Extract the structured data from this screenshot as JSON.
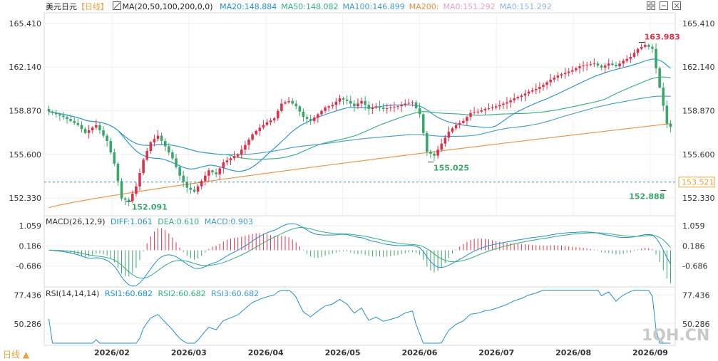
{
  "header": {
    "symbol": "美元日元",
    "period_tag": "【日线】",
    "ma_label": "MA(20,50,100,200,0,0)",
    "ma_values": [
      {
        "label": "MA20:148.884",
        "color": "#1e8fd6"
      },
      {
        "label": "MA50:148.082",
        "color": "#2fae7a"
      },
      {
        "label": "MA100:146.899",
        "color": "#3c9bd0"
      },
      {
        "label": "MA200:",
        "color": "#f08c3c"
      },
      {
        "label": "MA0:151.292",
        "color": "#e79cc8"
      },
      {
        "label": "MA0:151.292",
        "color": "#8ab4e8"
      }
    ]
  },
  "controls": {
    "settings_icon": "grid-settings-icon",
    "minimize_icon": "minus-icon",
    "close_icon": "close-icon"
  },
  "macd": {
    "label": "MACD(26,12,9)",
    "diff": "DIFF:1.061",
    "dea": "DEA:0.610",
    "macd": "MACD:0.903",
    "ticks": [
      "1.059",
      "0.186",
      "-0.686"
    ],
    "colors": {
      "diff": "#1e8fd6",
      "dea": "#2fae7a",
      "label": "#333333"
    }
  },
  "rsi": {
    "label": "RSI(14,14,14)",
    "rsi1": "RSI1:60.682",
    "rsi2": "RSI2:60.682",
    "rsi3": "RSI3:60.682",
    "ticks": [
      "77.436",
      "50.286"
    ],
    "colors": {
      "line": "#1e8fd6",
      "label": "#333333"
    }
  },
  "footer": {
    "period_button": "日线 ▲",
    "watermark": "1QH.CN"
  },
  "chart_data": {
    "type": "candlestick",
    "y_ticks": [
      "165.410",
      "162.140",
      "158.870",
      "155.600",
      "152.330"
    ],
    "ylim": [
      151.0,
      166.2
    ],
    "x_ticks": [
      "2026/02",
      "2026/03",
      "2026/04",
      "2026/05",
      "2026/06",
      "2026/07",
      "2026/08",
      "2026/09"
    ],
    "last_price": "153.521",
    "annotations": [
      {
        "text": "163.983",
        "color": "#e0304a"
      },
      {
        "text": "152.091",
        "color": "#3aa66a"
      },
      {
        "text": "155.025",
        "color": "#3aa66a"
      },
      {
        "text": "152.888",
        "color": "#3aa66a"
      }
    ],
    "candles_count": 172,
    "price_path": [
      [
        0,
        158.8
      ],
      [
        4,
        158.4
      ],
      [
        8,
        157.8
      ],
      [
        10,
        157.2
      ],
      [
        13,
        157.8
      ],
      [
        16,
        156.6
      ],
      [
        18,
        154.9
      ],
      [
        20,
        152.3
      ],
      [
        22,
        152.1
      ],
      [
        24,
        153.2
      ],
      [
        26,
        155.2
      ],
      [
        28,
        156.5
      ],
      [
        30,
        157.0
      ],
      [
        32,
        156.2
      ],
      [
        34,
        155.3
      ],
      [
        36,
        154.0
      ],
      [
        38,
        153.1
      ],
      [
        40,
        152.8
      ],
      [
        42,
        153.6
      ],
      [
        44,
        154.4
      ],
      [
        46,
        154.1
      ],
      [
        48,
        155.0
      ],
      [
        50,
        155.3
      ],
      [
        52,
        155.6
      ],
      [
        54,
        156.3
      ],
      [
        56,
        157.1
      ],
      [
        58,
        157.6
      ],
      [
        60,
        158.0
      ],
      [
        62,
        158.3
      ],
      [
        64,
        159.4
      ],
      [
        66,
        159.6
      ],
      [
        68,
        159.2
      ],
      [
        70,
        158.4
      ],
      [
        72,
        158.1
      ],
      [
        74,
        158.6
      ],
      [
        76,
        159.1
      ],
      [
        78,
        159.3
      ],
      [
        80,
        159.8
      ],
      [
        82,
        159.6
      ],
      [
        84,
        159.2
      ],
      [
        86,
        159.6
      ],
      [
        88,
        159.0
      ],
      [
        90,
        159.2
      ],
      [
        92,
        159.0
      ],
      [
        94,
        159.1
      ],
      [
        96,
        159.2
      ],
      [
        98,
        159.4
      ],
      [
        100,
        159.5
      ],
      [
        102,
        158.6
      ],
      [
        104,
        155.8
      ],
      [
        106,
        155.5
      ],
      [
        108,
        156.4
      ],
      [
        110,
        157.3
      ],
      [
        112,
        157.8
      ],
      [
        114,
        158.1
      ],
      [
        116,
        158.7
      ],
      [
        118,
        158.8
      ],
      [
        120,
        159.0
      ],
      [
        122,
        159.1
      ],
      [
        124,
        159.3
      ],
      [
        126,
        159.5
      ],
      [
        128,
        159.8
      ],
      [
        130,
        160.0
      ],
      [
        132,
        160.3
      ],
      [
        134,
        160.5
      ],
      [
        136,
        160.8
      ],
      [
        138,
        161.2
      ],
      [
        140,
        161.5
      ],
      [
        142,
        161.7
      ],
      [
        144,
        161.9
      ],
      [
        146,
        162.2
      ],
      [
        148,
        162.3
      ],
      [
        150,
        162.4
      ],
      [
        152,
        162.1
      ],
      [
        154,
        162.4
      ],
      [
        156,
        162.2
      ],
      [
        158,
        162.6
      ],
      [
        160,
        162.9
      ],
      [
        162,
        163.5
      ],
      [
        164,
        163.8
      ],
      [
        166,
        163.5
      ],
      [
        168,
        160.6
      ],
      [
        170,
        157.9
      ],
      [
        172,
        157.4
      ]
    ],
    "rsi_ticks_meaning": "RSI"
  }
}
